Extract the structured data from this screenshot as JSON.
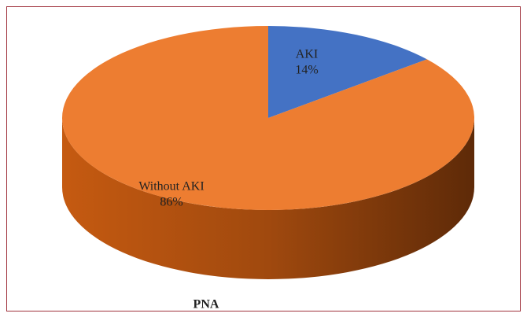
{
  "chart_data": {
    "type": "pie",
    "title": "PNA",
    "categories": [
      "AKI",
      "Without AKI"
    ],
    "values": [
      14,
      86
    ],
    "value_labels": [
      "14%",
      "86%"
    ],
    "colors": [
      "#4472c4",
      "#ed7d31"
    ]
  }
}
